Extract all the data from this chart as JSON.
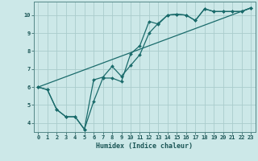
{
  "title": "",
  "xlabel": "Humidex (Indice chaleur)",
  "background_color": "#cce8e8",
  "grid_color": "#aacccc",
  "line_color": "#1a6b6b",
  "xlim": [
    -0.5,
    23.5
  ],
  "ylim": [
    3.5,
    10.75
  ],
  "yticks": [
    4,
    5,
    6,
    7,
    8,
    9,
    10
  ],
  "xticks": [
    0,
    1,
    2,
    3,
    4,
    5,
    6,
    7,
    8,
    9,
    10,
    11,
    12,
    13,
    14,
    15,
    16,
    17,
    18,
    19,
    20,
    21,
    22,
    23
  ],
  "line1_x": [
    0,
    1,
    2,
    3,
    4,
    5,
    6,
    7,
    8,
    9,
    10,
    11,
    12,
    13,
    14,
    15,
    16,
    17,
    18,
    19,
    20,
    21,
    22,
    23
  ],
  "line1_y": [
    6.0,
    5.85,
    4.75,
    4.35,
    4.35,
    3.65,
    5.2,
    6.5,
    6.5,
    6.3,
    7.85,
    8.3,
    9.65,
    9.5,
    10.0,
    10.05,
    10.0,
    9.7,
    10.35,
    10.2,
    10.2,
    10.2,
    10.2,
    10.4
  ],
  "line2_x": [
    0,
    1,
    2,
    3,
    4,
    5,
    6,
    7,
    8,
    9,
    10,
    11,
    12,
    13,
    14,
    15,
    16,
    17,
    18,
    19,
    20,
    21,
    22,
    23
  ],
  "line2_y": [
    6.0,
    5.85,
    4.75,
    4.35,
    4.35,
    3.65,
    6.4,
    6.55,
    7.15,
    6.6,
    7.2,
    7.8,
    9.0,
    9.55,
    10.0,
    10.05,
    10.0,
    9.7,
    10.35,
    10.2,
    10.2,
    10.2,
    10.2,
    10.4
  ],
  "line3_x": [
    0,
    23
  ],
  "line3_y": [
    6.0,
    10.4
  ],
  "spine_color": "#558888"
}
